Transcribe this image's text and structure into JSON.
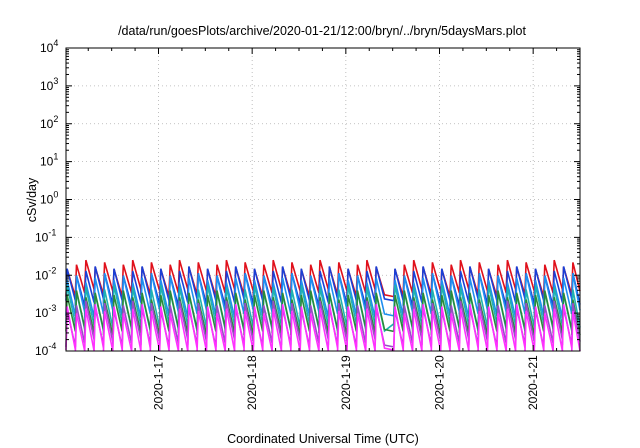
{
  "chart_data": {
    "type": "line",
    "title": "/data/run/goesPlots/archive/2020-01-21/12:00/bryn/../bryn/5daysMars.plot",
    "xlabel": "Coordinated Universal Time (UTC)",
    "ylabel": "cSv/day",
    "x_range": [
      "2020-01-16 00:18",
      "2020-01-21 12:00"
    ],
    "ylim": [
      0.0001,
      10000
    ],
    "y_scale": "log",
    "grid": true,
    "x_ticks": [
      {
        "label": "2020-1-17",
        "value": "2020-01-17 00:00"
      },
      {
        "label": "2020-1-18",
        "value": "2020-01-18 00:00"
      },
      {
        "label": "2020-1-19",
        "value": "2020-01-19 00:00"
      },
      {
        "label": "2020-1-20",
        "value": "2020-01-20 00:00"
      },
      {
        "label": "2020-1-21",
        "value": "2020-01-21 00:00"
      }
    ],
    "y_ticks": [
      {
        "value": 0.0001,
        "base": "10",
        "exp": "-4"
      },
      {
        "value": 0.001,
        "base": "10",
        "exp": "-3"
      },
      {
        "value": 0.01,
        "base": "10",
        "exp": "-2"
      },
      {
        "value": 0.1,
        "base": "10",
        "exp": "-1"
      },
      {
        "value": 1,
        "base": "10",
        "exp": "0"
      },
      {
        "value": 10,
        "base": "10",
        "exp": "1"
      },
      {
        "value": 100,
        "base": "10",
        "exp": "2"
      },
      {
        "value": 1000,
        "base": "10",
        "exp": "3"
      },
      {
        "value": 10000,
        "base": "10",
        "exp": "4"
      }
    ],
    "pattern": {
      "period_hours": 2.4,
      "drop_fraction": 0.12,
      "gap_after_hour": 2.4,
      "gap_hours": [
        [
          80.2,
          82.3
        ],
        [
          109.0,
          110.2
        ]
      ]
    },
    "series": [
      {
        "color": "#e0101b",
        "peak": 0.019,
        "trough": 0.0034
      },
      {
        "color": "#1a3fd6",
        "peak": 0.013,
        "trough": 0.0019
      },
      {
        "color": "#1e8ff0",
        "peak": 0.0085,
        "trough": 0.00095
      },
      {
        "color": "#20b2b0",
        "peak": 0.0042,
        "trough": 0.00042
      },
      {
        "color": "#2a8a3a",
        "peak": 0.003,
        "trough": 0.00033
      },
      {
        "color": "#9a4cc8",
        "peak": 0.0016,
        "trough": 0.00016
      },
      {
        "color": "#ff30ff",
        "peak": 0.0013,
        "trough": 9.5e-05
      }
    ]
  }
}
